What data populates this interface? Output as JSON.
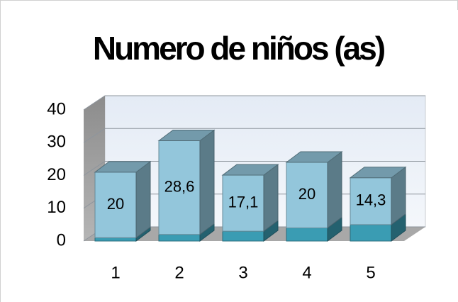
{
  "chart_data": {
    "type": "bar",
    "stacked": true,
    "title": "Numero de niños (as)",
    "categories": [
      "1",
      "2",
      "3",
      "4",
      "5"
    ],
    "series": [
      {
        "color": "#3a9cb3",
        "values": [
          1,
          2,
          3,
          4,
          5
        ]
      },
      {
        "color": "#93c6db",
        "values": [
          20,
          28.6,
          17.1,
          20,
          14.3
        ],
        "value_labels": [
          "20",
          "28,6",
          "17,1",
          "20",
          "14,3"
        ]
      }
    ],
    "ylim": [
      0,
      40
    ],
    "yticks": [
      0,
      10,
      20,
      30,
      40
    ],
    "grid": true
  }
}
